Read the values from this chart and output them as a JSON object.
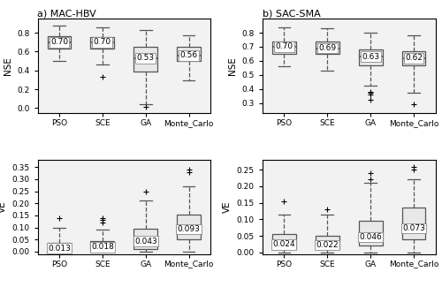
{
  "title_a": "a) MAC-HBV",
  "title_b": "b) SAC-SMA",
  "categories": [
    "PSO",
    "SCE",
    "GA",
    "Monte_Carlo"
  ],
  "nse_a": {
    "PSO": {
      "q1": 0.63,
      "median": 0.7,
      "q3": 0.76,
      "whislo": 0.5,
      "whishi": 0.88,
      "fliers": []
    },
    "SCE": {
      "q1": 0.63,
      "median": 0.7,
      "q3": 0.75,
      "whislo": 0.46,
      "whishi": 0.86,
      "fliers": [
        0.33
      ]
    },
    "GA": {
      "q1": 0.39,
      "median": 0.53,
      "q3": 0.65,
      "whislo": 0.04,
      "whishi": 0.83,
      "fliers": [
        0.01
      ]
    },
    "Monte_Carlo": {
      "q1": 0.5,
      "median": 0.56,
      "q3": 0.65,
      "whislo": 0.29,
      "whishi": 0.77,
      "fliers": []
    }
  },
  "nse_b": {
    "PSO": {
      "q1": 0.65,
      "median": 0.7,
      "q3": 0.74,
      "whislo": 0.56,
      "whishi": 0.84,
      "fliers": []
    },
    "SCE": {
      "q1": 0.65,
      "median": 0.69,
      "q3": 0.74,
      "whislo": 0.53,
      "whishi": 0.83,
      "fliers": []
    },
    "GA": {
      "q1": 0.57,
      "median": 0.63,
      "q3": 0.68,
      "whislo": 0.42,
      "whishi": 0.8,
      "fliers": [
        0.36,
        0.37,
        0.38,
        0.32
      ]
    },
    "Monte_Carlo": {
      "q1": 0.57,
      "median": 0.62,
      "q3": 0.67,
      "whislo": 0.37,
      "whishi": 0.78,
      "fliers": [
        0.29
      ]
    }
  },
  "ve_a": {
    "PSO": {
      "q1": 0.005,
      "median": 0.013,
      "q3": 0.035,
      "whislo": 0.0,
      "whishi": 0.1,
      "fliers": [
        0.14
      ]
    },
    "SCE": {
      "q1": 0.005,
      "median": 0.018,
      "q3": 0.045,
      "whislo": 0.0,
      "whishi": 0.09,
      "fliers": [
        0.12,
        0.13,
        0.14
      ]
    },
    "GA": {
      "q1": 0.01,
      "median": 0.043,
      "q3": 0.095,
      "whislo": 0.0,
      "whishi": 0.21,
      "fliers": [
        0.25
      ]
    },
    "Monte_Carlo": {
      "q1": 0.05,
      "median": 0.093,
      "q3": 0.155,
      "whislo": 0.0,
      "whishi": 0.27,
      "fliers": [
        0.34,
        0.33
      ]
    }
  },
  "ve_b": {
    "PSO": {
      "q1": 0.01,
      "median": 0.024,
      "q3": 0.055,
      "whislo": 0.0,
      "whishi": 0.115,
      "fliers": [
        0.155
      ]
    },
    "SCE": {
      "q1": 0.01,
      "median": 0.022,
      "q3": 0.05,
      "whislo": 0.0,
      "whishi": 0.115,
      "fliers": [
        0.13
      ]
    },
    "GA": {
      "q1": 0.02,
      "median": 0.046,
      "q3": 0.095,
      "whislo": 0.0,
      "whishi": 0.21,
      "fliers": [
        0.22,
        0.24
      ]
    },
    "Monte_Carlo": {
      "q1": 0.04,
      "median": 0.073,
      "q3": 0.135,
      "whislo": 0.0,
      "whishi": 0.22,
      "fliers": [
        0.25,
        0.26
      ]
    }
  },
  "nse_a_ylim": [
    -0.05,
    0.95
  ],
  "nse_b_ylim": [
    0.23,
    0.9
  ],
  "ve_a_ylim": [
    -0.01,
    0.38
  ],
  "ve_b_ylim": [
    -0.005,
    0.28
  ],
  "nse_a_yticks": [
    0.0,
    0.2,
    0.4,
    0.6,
    0.8
  ],
  "nse_b_yticks": [
    0.3,
    0.4,
    0.5,
    0.6,
    0.7,
    0.8
  ],
  "ve_a_yticks": [
    0.0,
    0.05,
    0.1,
    0.15,
    0.2,
    0.25,
    0.3,
    0.35
  ],
  "ve_b_yticks": [
    0.0,
    0.05,
    0.1,
    0.15,
    0.2,
    0.25
  ],
  "box_facecolor": "#e8e8e8",
  "box_edgecolor": "#555555",
  "median_color": "#555555",
  "flier_color": "#777777"
}
